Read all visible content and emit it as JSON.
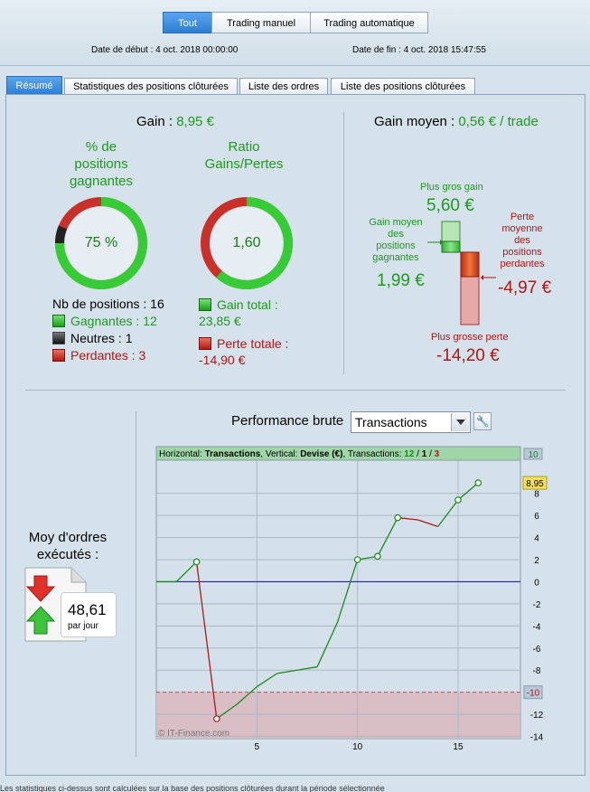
{
  "header": {
    "segments": [
      "Tout",
      "Trading manuel",
      "Trading automatique"
    ],
    "start_label": "Date de début : 4 oct. 2018 00:00:00",
    "end_label": "Date de fin : 4 oct. 2018 15:47:55"
  },
  "tabs": [
    "Résumé",
    "Statistiques des positions clôturées",
    "Liste des ordres",
    "Liste des positions clôturées"
  ],
  "summary": {
    "gain_label": "Gain :",
    "gain_value": "8,95 €",
    "pct_title_1": "% de",
    "pct_title_2": "positions",
    "pct_title_3": "gagnantes",
    "pct_value": "75 %",
    "pct_fraction": 0.75,
    "neutral_fraction": 0.0625,
    "ratio_title_1": "Ratio",
    "ratio_title_2": "Gains/Pertes",
    "ratio_value": "1,60",
    "ratio_green_fraction": 0.6155,
    "nb_positions": "Nb de positions : 16",
    "gagnantes": "Gagnantes : 12",
    "neutres": "Neutres : 1",
    "perdantes": "Perdantes : 3",
    "gain_total_label": "Gain total :",
    "gain_total_value": "23,85 €",
    "perte_totale_label": "Perte totale :",
    "perte_totale_value": "-14,90 €"
  },
  "gain_moyen": {
    "label": "Gain moyen :",
    "value": "0,56 € / trade",
    "plus_gros_gain_label": "Plus gros gain",
    "plus_gros_gain_value": "5,60 €",
    "gain_moyen_pos_1": "Gain moyen",
    "gain_moyen_pos_2": "des",
    "gain_moyen_pos_3": "positions",
    "gain_moyen_pos_4": "gagnantes",
    "gain_moyen_pos_value": "1,99 €",
    "perte_moy_1": "Perte",
    "perte_moy_2": "moyenne",
    "perte_moy_3": "des",
    "perte_moy_4": "positions",
    "perte_moy_5": "perdantes",
    "perte_moy_value": "-4,97 €",
    "plus_grosse_perte_label": "Plus grosse perte",
    "plus_grosse_perte_value": "-14,20 €"
  },
  "orders": {
    "title_1": "Moy d'ordres",
    "title_2": "exécutés :",
    "value": "48,61",
    "unit": "par jour"
  },
  "performance": {
    "title": "Performance brute",
    "dropdown_value": "Transactions"
  },
  "chart_data": {
    "type": "line",
    "header_prefix": "Horizontal:",
    "header_h": "Transactions",
    "header_mid": ", Vertical:",
    "header_v": "Devise (€)",
    "header_tr": ", Transactions:",
    "header_w": "12",
    "header_n": "1",
    "header_l": "3",
    "watermark": "© IT-Finance.com",
    "last_value_label": "8,95",
    "threshold_label": "-10",
    "threshold_top_label": "10",
    "xlim": [
      0,
      18.1
    ],
    "ylim": [
      -14.2,
      11
    ],
    "x_ticks": [
      5,
      10,
      15
    ],
    "y_ticks": [
      8,
      6,
      4,
      2,
      0,
      -2,
      -4,
      -6,
      -8,
      -12,
      -14
    ],
    "threshold": -10,
    "zero_line": 0,
    "points": [
      {
        "x": 0,
        "y": 0
      },
      {
        "x": 1,
        "y": 0
      },
      {
        "x": 2,
        "y": 1.8,
        "marker": true
      },
      {
        "x": 3,
        "y": -12.4,
        "marker": true
      },
      {
        "x": 4,
        "y": -11.1
      },
      {
        "x": 5,
        "y": -9.5
      },
      {
        "x": 6,
        "y": -8.3
      },
      {
        "x": 7,
        "y": -8.0
      },
      {
        "x": 8,
        "y": -7.7
      },
      {
        "x": 9,
        "y": -3.7
      },
      {
        "x": 10,
        "y": 2.0,
        "marker": true
      },
      {
        "x": 11,
        "y": 2.3,
        "marker": true
      },
      {
        "x": 12,
        "y": 5.8,
        "marker": true
      },
      {
        "x": 13,
        "y": 5.6
      },
      {
        "x": 14,
        "y": 5.0
      },
      {
        "x": 15,
        "y": 7.4,
        "marker": true
      },
      {
        "x": 16,
        "y": 8.95,
        "marker": true
      }
    ],
    "colors": {
      "up": "#1a8a1a",
      "down": "#b01818",
      "zero": "#2020b0",
      "loss_zone": "#d9b8be",
      "header_bg": "#9fd6a7"
    }
  },
  "footer_text": "Les statistiques ci-dessus sont calculées sur la base des positions clôturées durant la période sélectionnée"
}
